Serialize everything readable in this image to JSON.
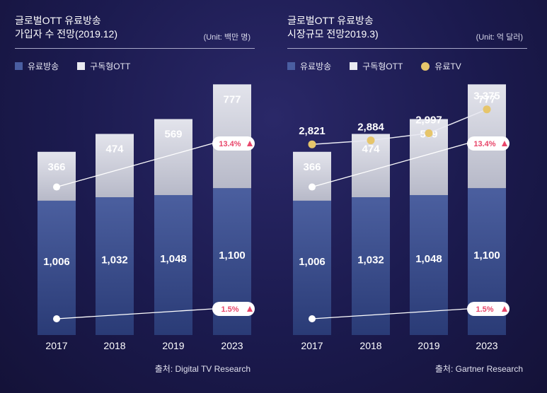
{
  "colors": {
    "paid_tv_bar": "#3a4f8f",
    "ott_bar": "#c9cbd6",
    "paid_tv_line_dot": "#e6c56b",
    "badge_text": "#e8466a"
  },
  "panels": [
    {
      "title_line1": "글로벌OTT 유료방송",
      "title_line2": "가입자 수 전망(2019.12)",
      "unit": "(Unit: 백만 명)",
      "legend": [
        "유료방송",
        "구독형OTT"
      ],
      "source": "출처: Digital TV Research"
    },
    {
      "title_line1": "글로벌OTT 유료방송",
      "title_line2": "시장규모 전망2019.3)",
      "unit": "(Unit: 억 달러)",
      "legend": [
        "유료방송",
        "구독형OTT",
        "유료TV"
      ],
      "source": "출처: Gartner Research"
    }
  ],
  "chart_data": [
    {
      "type": "bar",
      "stacked": true,
      "categories": [
        "2017",
        "2018",
        "2019",
        "2023"
      ],
      "series": [
        {
          "name": "유료방송",
          "values": [
            1006,
            1032,
            1048,
            1100
          ],
          "labels": [
            "1,006",
            "1,032",
            "1,048",
            "1,100"
          ]
        },
        {
          "name": "구독형OTT",
          "values": [
            366,
            474,
            569,
            777
          ],
          "labels": [
            "366",
            "474",
            "569",
            "777"
          ]
        }
      ],
      "ylim": [
        0,
        1900
      ],
      "growth_badges": {
        "구독형OTT": "13.4%",
        "유료방송": "1.5%"
      },
      "legend_position": "top-left"
    },
    {
      "type": "bar",
      "stacked": true,
      "categories": [
        "2017",
        "2018",
        "2019",
        "2023"
      ],
      "series": [
        {
          "name": "유료방송",
          "values": [
            1006,
            1032,
            1048,
            1100
          ],
          "labels": [
            "1,006",
            "1,032",
            "1,048",
            "1,100"
          ]
        },
        {
          "name": "구독형OTT",
          "values": [
            366,
            474,
            569,
            777
          ],
          "labels": [
            "366",
            "474",
            "569",
            "777"
          ]
        }
      ],
      "line_series": {
        "name": "유료TV",
        "values": [
          2821,
          2884,
          2997,
          3375
        ],
        "labels": [
          "2,821",
          "2,884",
          "2,997",
          "3,375"
        ]
      },
      "ylim": [
        0,
        1900
      ],
      "growth_badges": {
        "구독형OTT": "13.4%",
        "유료방송": "1.5%"
      },
      "legend_position": "top-left"
    }
  ]
}
